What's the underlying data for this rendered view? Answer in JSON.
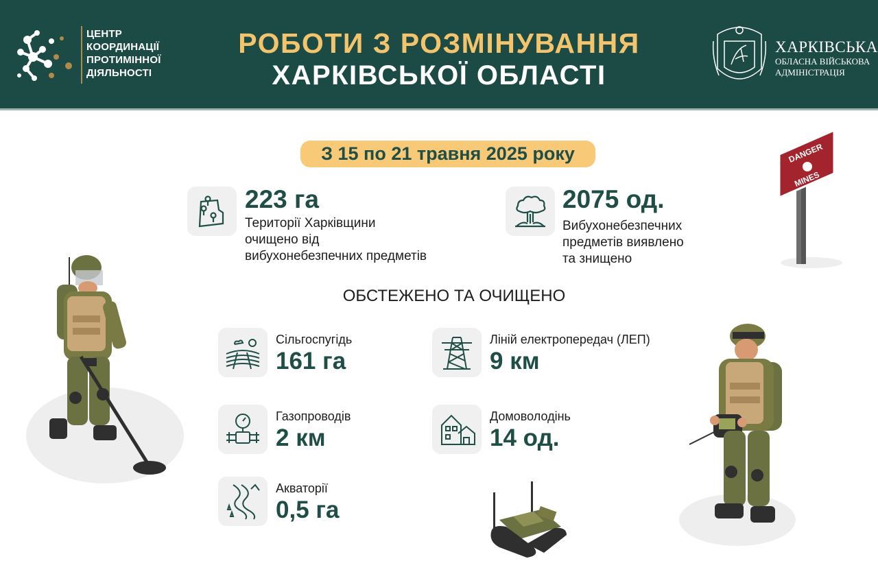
{
  "header": {
    "logo_text": [
      "ЦЕНТР",
      "КООРДИНАЦІЇ",
      "ПРОТИМІННОЇ",
      "ДІЯЛЬНОСТІ"
    ],
    "title_line1": "РОБОТИ З РОЗМІНУВАННЯ",
    "title_line2": "ХАРКІВСЬКОЇ ОБЛАСТІ",
    "oda_name": "ХАРКІВСЬКА",
    "oda_line2": "ОБЛАСНА ВІЙСЬКОВА",
    "oda_line3": "АДМІНІСТРАЦІЯ"
  },
  "period": "З 15 по 21 травня 2025 року",
  "stats": [
    {
      "value": "223 га",
      "icon": "map-pins-icon",
      "desc": [
        "Території Харківщини",
        "очищено від",
        "вибухонебезпечних предметів"
      ]
    },
    {
      "value": "2075 од.",
      "icon": "explosion-icon",
      "desc": [
        "Вибухонебезпечних",
        "предметів виявлено",
        "та знищено"
      ]
    }
  ],
  "section_title": "ОБСТЕЖЕНО ТА ОЧИЩЕНО",
  "items": [
    {
      "label": "Сільгоспугідь",
      "value": "161 га",
      "icon": "farmland-icon"
    },
    {
      "label": "Ліній електропередач (ЛЕП)",
      "value": "9 км",
      "icon": "power-line-icon"
    },
    {
      "label": "Газопроводів",
      "value": "2 км",
      "icon": "gas-pipe-icon"
    },
    {
      "label": "Домоволодінь",
      "value": "14 од.",
      "icon": "houses-icon"
    },
    {
      "label": "Акваторії",
      "value": "0,5 га",
      "icon": "river-icon"
    }
  ],
  "sign": {
    "line1": "DANGER",
    "line2": "MINES"
  },
  "colors": {
    "header_bg": "#1c4a45",
    "title_gold": "#f3c46c",
    "badge": "#f8c977",
    "accent_green": "#1f4e47",
    "tile": "#f0f0f0",
    "sign_red": "#a3242c"
  }
}
